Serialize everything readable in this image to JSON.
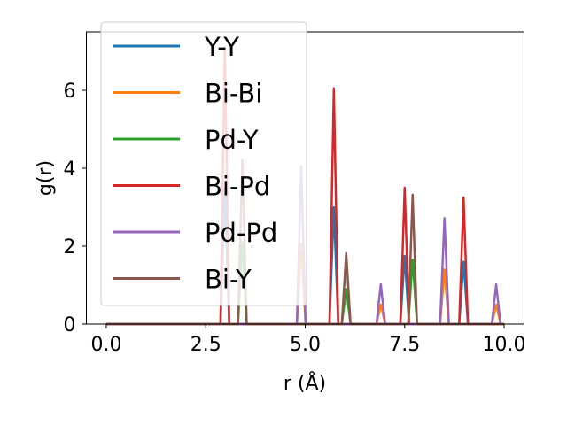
{
  "chart_data": {
    "type": "line",
    "title": "",
    "xlabel": "r (Å)",
    "ylabel": "g(r)",
    "xlim": [
      -0.5,
      10.5
    ],
    "ylim": [
      0,
      7.5
    ],
    "xticks": [
      0.0,
      2.5,
      5.0,
      7.5,
      10.0
    ],
    "xtick_labels": [
      "0.0",
      "2.5",
      "5.0",
      "7.5",
      "10.0"
    ],
    "yticks": [
      0,
      2,
      4,
      6
    ],
    "ytick_labels": [
      "0",
      "2",
      "4",
      "6"
    ],
    "grid": false,
    "legend_position": "top-left",
    "peak_halfwidth": 0.11,
    "series": [
      {
        "name": "Y-Y",
        "color": "#1f77b4",
        "peaks": [
          [
            2.98,
            3.5
          ],
          [
            5.72,
            3.0
          ],
          [
            7.5,
            1.75
          ],
          [
            8.98,
            1.6
          ]
        ]
      },
      {
        "name": "Bi-Bi",
        "color": "#ff7f0e",
        "peaks": [
          [
            4.9,
            2.05
          ],
          [
            6.9,
            0.5
          ],
          [
            8.5,
            1.4
          ],
          [
            9.8,
            0.5
          ]
        ]
      },
      {
        "name": "Pd-Y",
        "color": "#2ca02c",
        "peaks": [
          [
            3.42,
            2.1
          ],
          [
            6.03,
            0.9
          ],
          [
            7.7,
            1.65
          ]
        ]
      },
      {
        "name": "Bi-Pd",
        "color": "#d62728",
        "peaks": [
          [
            2.98,
            7.1
          ],
          [
            5.72,
            6.05
          ],
          [
            7.5,
            3.5
          ],
          [
            8.98,
            3.25
          ]
        ]
      },
      {
        "name": "Pd-Pd",
        "color": "#9467bd",
        "peaks": [
          [
            4.9,
            4.05
          ],
          [
            6.9,
            1.02
          ],
          [
            8.5,
            2.72
          ],
          [
            9.8,
            1.02
          ]
        ]
      },
      {
        "name": "Bi-Y",
        "color": "#8c564b",
        "peaks": [
          [
            3.42,
            4.2
          ],
          [
            6.03,
            1.82
          ],
          [
            7.7,
            3.32
          ]
        ]
      }
    ]
  }
}
